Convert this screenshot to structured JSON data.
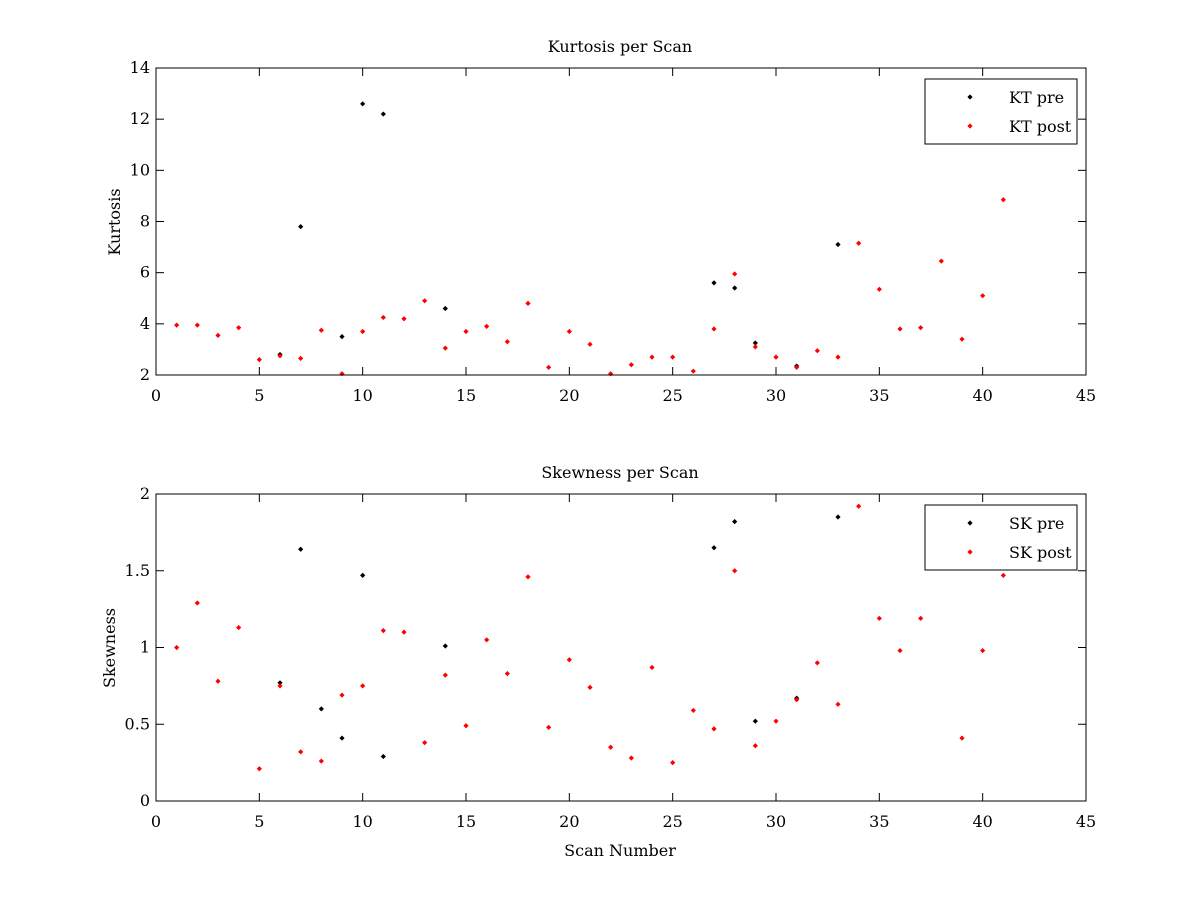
{
  "chart_data": [
    {
      "type": "scatter",
      "title": "Kurtosis per Scan",
      "xlabel": "",
      "ylabel": "Kurtosis",
      "xlim": [
        0,
        45
      ],
      "ylim": [
        2,
        14
      ],
      "xticks": [
        "0",
        "5",
        "10",
        "15",
        "20",
        "25",
        "30",
        "35",
        "40",
        "45"
      ],
      "yticks": [
        "2",
        "4",
        "6",
        "8",
        "10",
        "12",
        "14"
      ],
      "grid": false,
      "legend_position": "top-right",
      "series": [
        {
          "name": "KT pre",
          "color": "#000000",
          "x": [
            6,
            7,
            9,
            10,
            11,
            14,
            27,
            28,
            29,
            31,
            33
          ],
          "y": [
            2.8,
            7.8,
            3.5,
            12.6,
            12.2,
            4.6,
            5.6,
            5.4,
            3.25,
            2.35,
            7.1
          ]
        },
        {
          "name": "KT post",
          "color": "#ff0000",
          "x": [
            1,
            2,
            3,
            4,
            5,
            6,
            7,
            8,
            9,
            10,
            11,
            12,
            13,
            14,
            15,
            16,
            17,
            18,
            19,
            20,
            21,
            22,
            23,
            24,
            25,
            26,
            27,
            28,
            29,
            30,
            31,
            32,
            33,
            34,
            35,
            36,
            37,
            38,
            39,
            40,
            41
          ],
          "y": [
            3.95,
            3.95,
            3.55,
            3.85,
            2.6,
            2.75,
            2.65,
            3.75,
            2.05,
            3.7,
            4.25,
            4.2,
            4.9,
            3.05,
            3.7,
            3.9,
            3.3,
            4.8,
            2.3,
            3.7,
            3.2,
            2.05,
            2.4,
            2.7,
            2.7,
            2.15,
            3.8,
            5.95,
            3.1,
            2.7,
            2.3,
            2.95,
            2.7,
            7.15,
            5.35,
            3.8,
            3.85,
            6.45,
            3.4,
            5.1,
            8.85
          ]
        }
      ]
    },
    {
      "type": "scatter",
      "title": "Skewness per Scan",
      "xlabel": "Scan Number",
      "ylabel": "Skewness",
      "xlim": [
        0,
        45
      ],
      "ylim": [
        0,
        2
      ],
      "xticks": [
        "0",
        "5",
        "10",
        "15",
        "20",
        "25",
        "30",
        "35",
        "40",
        "45"
      ],
      "yticks": [
        "0",
        "0.5",
        "1",
        "1.5",
        "2"
      ],
      "grid": false,
      "legend_position": "top-right",
      "series": [
        {
          "name": "SK pre",
          "color": "#000000",
          "x": [
            6,
            7,
            8,
            9,
            10,
            11,
            14,
            27,
            28,
            29,
            31,
            33
          ],
          "y": [
            0.77,
            1.64,
            0.6,
            0.41,
            1.47,
            0.29,
            1.01,
            1.65,
            1.82,
            0.52,
            0.67,
            1.85
          ]
        },
        {
          "name": "SK post",
          "color": "#ff0000",
          "x": [
            1,
            2,
            3,
            4,
            5,
            6,
            7,
            8,
            9,
            10,
            11,
            12,
            13,
            14,
            15,
            16,
            17,
            18,
            19,
            20,
            21,
            22,
            23,
            24,
            25,
            26,
            27,
            28,
            29,
            30,
            31,
            32,
            33,
            34,
            35,
            36,
            37,
            38,
            39,
            40,
            41
          ],
          "y": [
            1.0,
            1.29,
            0.78,
            1.13,
            0.21,
            0.75,
            0.32,
            0.26,
            0.69,
            0.75,
            1.11,
            1.1,
            0.38,
            0.82,
            0.49,
            1.05,
            0.83,
            1.46,
            0.48,
            0.92,
            0.74,
            0.35,
            0.28,
            0.87,
            0.25,
            0.59,
            0.47,
            1.5,
            0.36,
            0.52,
            0.66,
            0.9,
            0.63,
            1.92,
            1.19,
            0.98,
            1.19,
            1.6,
            0.41,
            0.98,
            1.47
          ]
        }
      ]
    }
  ]
}
